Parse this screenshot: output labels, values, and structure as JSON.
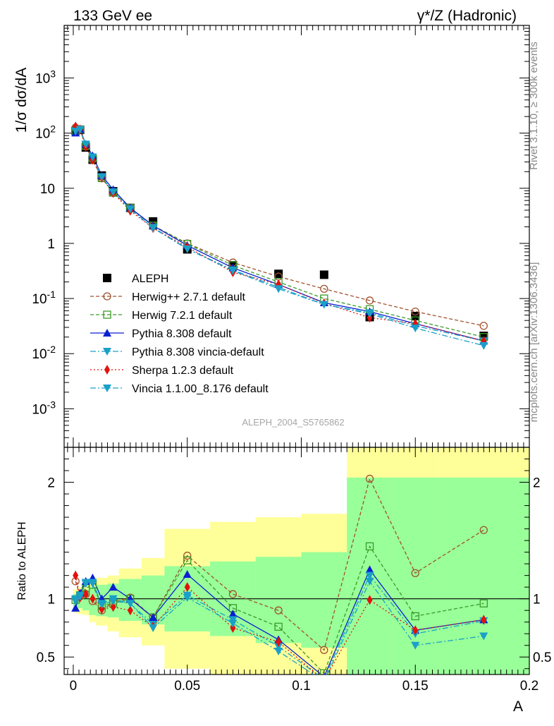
{
  "header": {
    "left": "133 GeV ee",
    "right": "γ*/Z (Hadronic)"
  },
  "side_texts": {
    "rivet": "Rivet 3.1.10, ≥ 300k events",
    "site": "mcplots.cern.ch [arXiv:1306.3436]"
  },
  "analysis_id": "ALEPH_2004_S5765862",
  "chart_data": [
    {
      "type": "scatter",
      "title": "133 GeV ee",
      "ylabel": "1/σ dσ/dA",
      "yscale": "log",
      "ylim": [
        0.0002,
        9000
      ],
      "xlim": [
        -0.004,
        0.2
      ],
      "ytick_labels": [
        "10^-3",
        "10^-2",
        "10^-1",
        "1",
        "10",
        "10^2",
        "10^3"
      ],
      "x": [
        0.001,
        0.003,
        0.0055,
        0.0085,
        0.0125,
        0.0175,
        0.025,
        0.035,
        0.05,
        0.07,
        0.09,
        0.11,
        0.13,
        0.15,
        0.18
      ],
      "series": [
        {
          "name": "ALEPH",
          "color": "#000000",
          "marker": "square",
          "values": [
            110,
            115,
            55,
            33,
            17,
            8.8,
            4.4,
            2.5,
            0.78,
            0.4,
            0.28,
            0.27,
            0.046,
            0.048,
            0.021
          ]
        },
        {
          "name": "Herwig++ 2.7.1 default",
          "color": "#a0522d",
          "marker": "circle-open",
          "dash": "5,3",
          "values": [
            126,
            116,
            57,
            33,
            15.2,
            8.5,
            4.4,
            2.1,
            1.0,
            0.45,
            0.25,
            0.15,
            0.092,
            0.058,
            0.032
          ]
        },
        {
          "name": "Herwig 7.2.1 default",
          "color": "#3a9a2a",
          "marker": "square-open",
          "dash": "5,3",
          "values": [
            109,
            117,
            59,
            36,
            15.3,
            8.3,
            4.4,
            2.1,
            0.98,
            0.4,
            0.2,
            0.1,
            0.064,
            0.04,
            0.02
          ]
        },
        {
          "name": "Pythia 8.308 default",
          "color": "#0a1fd0",
          "marker": "triangle-up",
          "dash": "",
          "values": [
            101,
            118,
            63,
            39,
            17.0,
            9.5,
            4.4,
            2.1,
            0.92,
            0.36,
            0.18,
            0.084,
            0.058,
            0.035,
            0.017
          ]
        },
        {
          "name": "Pythia 8.308 vincia-default",
          "color": "#1aa0c8",
          "marker": "triangle-down",
          "dash": "8,3,2,3",
          "values": [
            110,
            116,
            62,
            37,
            16.2,
            8.6,
            4.2,
            1.95,
            0.8,
            0.33,
            0.16,
            0.078,
            0.055,
            0.032,
            0.017
          ]
        },
        {
          "name": "Sherpa 1.2.3 default",
          "color": "#e3120b",
          "marker": "diamond",
          "dash": "2,3",
          "values": [
            132,
            117,
            57,
            33,
            15.5,
            8.2,
            3.9,
            1.9,
            0.86,
            0.3,
            0.18,
            0.082,
            0.045,
            0.035,
            0.017
          ]
        },
        {
          "name": "Vincia 1.1.00_8.176 default",
          "color": "#1aa0c8",
          "marker": "triangle-down",
          "dash": "8,3,2,3",
          "values": [
            108,
            117,
            63,
            37,
            16.0,
            8.6,
            4.2,
            1.9,
            0.79,
            0.32,
            0.15,
            0.078,
            0.053,
            0.029,
            0.014
          ]
        }
      ]
    },
    {
      "type": "scatter",
      "xlabel": "A",
      "ylabel": "Ratio to ALEPH",
      "ylim": [
        0.35,
        2.3
      ],
      "xlim": [
        -0.004,
        0.2
      ],
      "xticks": [
        0,
        0.05,
        0.1,
        0.15,
        0.2
      ],
      "xtick_labels": [
        "0",
        "0.05",
        "0.1",
        "0.15",
        "0.2"
      ],
      "yticks": [
        0.5,
        1,
        2
      ],
      "ytick_labels": [
        "0.5",
        "1",
        "2"
      ],
      "uncertainty_bands": {
        "edges": [
          0,
          0.002,
          0.004,
          0.007,
          0.01,
          0.015,
          0.02,
          0.03,
          0.04,
          0.06,
          0.08,
          0.1,
          0.12,
          0.14,
          0.16,
          0.2
        ],
        "green_low": [
          0.93,
          0.92,
          0.9,
          0.86,
          0.85,
          0.84,
          0.81,
          0.78,
          0.72,
          0.68,
          0.62,
          0.58,
          0.2,
          0.2,
          0.2
        ],
        "green_high": [
          1.04,
          1.06,
          1.08,
          1.1,
          1.12,
          1.13,
          1.17,
          1.2,
          1.28,
          1.32,
          1.36,
          1.4,
          2.04,
          2.04,
          2.04
        ],
        "yellow_low": [
          0.88,
          0.87,
          0.86,
          0.8,
          0.77,
          0.72,
          0.67,
          0.6,
          0.4,
          0.32,
          0.28,
          0.25,
          0.2,
          0.2,
          0.2
        ],
        "yellow_high": [
          1.08,
          1.1,
          1.13,
          1.16,
          1.18,
          1.2,
          1.26,
          1.35,
          1.6,
          1.66,
          1.7,
          1.73,
          2.5,
          2.5,
          2.5
        ]
      },
      "series": [
        {
          "name": "Herwig++ 2.7.1 default",
          "values": [
            1.15,
            1.02,
            1.04,
            0.98,
            0.9,
            0.97,
            1.01,
            0.84,
            1.37,
            1.04,
            0.9,
            0.56,
            2.03,
            1.22,
            1.59
          ]
        },
        {
          "name": "Herwig 7.2.1 default",
          "values": [
            0.99,
            1.03,
            1.09,
            1.12,
            0.94,
            0.96,
            1.0,
            0.84,
            1.33,
            0.92,
            0.76,
            0.36,
            1.45,
            0.85,
            0.96
          ]
        },
        {
          "name": "Pythia 8.308 default",
          "values": [
            0.92,
            1.05,
            1.15,
            1.18,
            1.0,
            1.1,
            1.0,
            0.84,
            1.21,
            0.87,
            0.65,
            0.33,
            1.25,
            0.73,
            0.82
          ]
        },
        {
          "name": "Pythia 8.308 vincia-default",
          "values": [
            1.0,
            1.03,
            1.13,
            1.14,
            0.96,
            1.0,
            0.96,
            0.78,
            1.03,
            0.82,
            0.59,
            0.31,
            1.2,
            0.7,
            0.81
          ]
        },
        {
          "name": "Sherpa 1.2.3 default",
          "values": [
            1.2,
            1.01,
            1.04,
            1.0,
            0.91,
            0.93,
            0.9,
            0.76,
            1.1,
            0.75,
            0.63,
            0.3,
            0.99,
            0.73,
            0.82
          ]
        },
        {
          "name": "Vincia 1.1.00_8.176 default",
          "values": [
            0.98,
            1.02,
            1.14,
            1.13,
            0.95,
            0.98,
            0.96,
            0.75,
            1.01,
            0.79,
            0.55,
            0.29,
            1.15,
            0.6,
            0.68
          ]
        }
      ]
    }
  ]
}
